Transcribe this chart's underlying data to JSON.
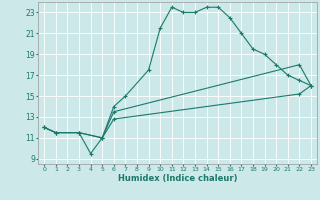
{
  "title": "",
  "xlabel": "Humidex (Indice chaleur)",
  "bg_color": "#cce8e8",
  "line_color": "#1a7a6a",
  "grid_color": "#ffffff",
  "xlim": [
    -0.5,
    23.5
  ],
  "ylim": [
    8.5,
    24.0
  ],
  "yticks": [
    9,
    11,
    13,
    15,
    17,
    19,
    21,
    23
  ],
  "xticks": [
    0,
    1,
    2,
    3,
    4,
    5,
    6,
    7,
    8,
    9,
    10,
    11,
    12,
    13,
    14,
    15,
    16,
    17,
    18,
    19,
    20,
    21,
    22,
    23
  ],
  "series": [
    {
      "x": [
        0,
        1,
        3,
        4,
        5,
        6,
        7,
        9,
        10,
        11,
        12,
        13,
        14,
        15,
        16,
        17,
        18,
        19,
        20,
        21,
        22,
        23
      ],
      "y": [
        12.0,
        11.5,
        11.5,
        9.5,
        11.0,
        14.0,
        15.0,
        17.5,
        21.5,
        23.5,
        23.0,
        23.0,
        23.5,
        23.5,
        22.5,
        21.0,
        19.5,
        19.0,
        18.0,
        17.0,
        16.5,
        16.0
      ]
    },
    {
      "x": [
        0,
        1,
        3,
        5,
        6,
        22,
        23
      ],
      "y": [
        12.0,
        11.5,
        11.5,
        11.0,
        13.5,
        18.0,
        16.0
      ]
    },
    {
      "x": [
        0,
        1,
        3,
        5,
        6,
        22,
        23
      ],
      "y": [
        12.0,
        11.5,
        11.5,
        11.0,
        12.8,
        15.2,
        16.0
      ]
    }
  ]
}
